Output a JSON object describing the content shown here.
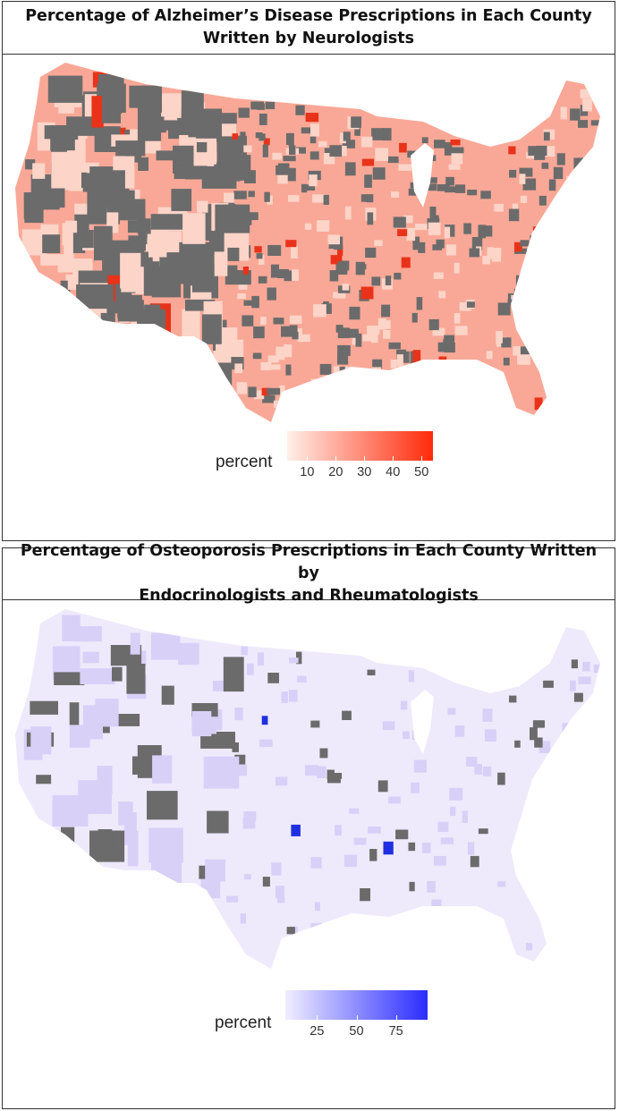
{
  "maps": [
    {
      "title_line1": "Percentage of Alzheimer’s Disease Prescriptions in Each County",
      "title_line2": "Written by Neurologists",
      "legend": {
        "title": "percent",
        "ticks": [
          10,
          20,
          30,
          40,
          50
        ],
        "range": [
          3,
          54
        ],
        "low_color": "#ffefe9",
        "high_color": "#ff2a0a"
      },
      "colors": {
        "land": "#f9a897",
        "missing": "#6b6b6b",
        "high": "#e8331a",
        "light": "#fcd4c8"
      }
    },
    {
      "title_line1": "Percentage of Osteoporosis Prescriptions in Each County Written by",
      "title_line2": "Endocrinologists and Rheumatologists",
      "legend": {
        "title": "percent",
        "ticks": [
          25,
          50,
          75
        ],
        "range": [
          5,
          95
        ],
        "low_color": "#f1eefe",
        "high_color": "#2a2cff"
      },
      "colors": {
        "land": "#eeeafc",
        "missing": "#6b6b6b",
        "high": "#1f2fe0",
        "light": "#d9d0f8"
      }
    }
  ]
}
